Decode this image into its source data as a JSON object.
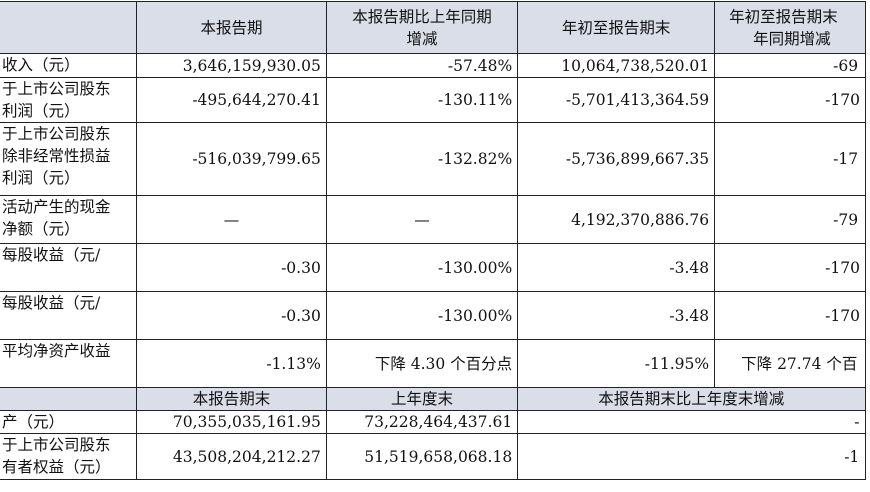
{
  "header": {
    "c1": "本报告期",
    "c2_line1": "本报告期比上年同期",
    "c2_line2": "增减",
    "c3": "年初至报告期末",
    "c4_line1": "年初至报告期末",
    "c4_line2": "年同期增减"
  },
  "rows": [
    {
      "label": [
        "收入（元）"
      ],
      "v1": "3,646,159,930.05",
      "v2": "-57.48%",
      "v3": "10,064,738,520.01",
      "v4": "-69"
    },
    {
      "label": [
        "于上市公司股东",
        "利润（元）"
      ],
      "v1": "-495,644,270.41",
      "v2": "-130.11%",
      "v3": "-5,701,413,364.59",
      "v4": "-170"
    },
    {
      "label": [
        "于上市公司股东",
        "除非经常性损益",
        "利润（元）"
      ],
      "v1": "-516,039,799.65",
      "v2": "-132.82%",
      "v3": "-5,736,899,667.35",
      "v4": "-17"
    },
    {
      "label": [
        "活动产生的现金",
        "净额（元）"
      ],
      "v1": "—",
      "v2": "—",
      "v3": "4,192,370,886.76",
      "v4": "-79"
    },
    {
      "label": [
        "每股收益（元/"
      ],
      "v1": "-0.30",
      "v2": "-130.00%",
      "v3": "-3.48",
      "v4": "-170"
    },
    {
      "label": [
        "每股收益（元/"
      ],
      "v1": "-0.30",
      "v2": "-130.00%",
      "v3": "-3.48",
      "v4": "-170"
    },
    {
      "label": [
        "平均净资产收益"
      ],
      "v1": "-1.13%",
      "v2": "下降 4.30 个百分点",
      "v3": "-11.95%",
      "v4": "下降 27.74 个百"
    }
  ],
  "header2": {
    "c1": "本报告期末",
    "c2": "上年度末",
    "c3": "本报告期末比上年度末增减"
  },
  "rows2": [
    {
      "label": [
        "产（元）"
      ],
      "v1": "70,355,035,161.95",
      "v2": "73,228,464,437.61",
      "v3": "-"
    },
    {
      "label": [
        "于上市公司股东",
        "有者权益（元）"
      ],
      "v1": "43,508,204,212.27",
      "v2": "51,519,658,068.18",
      "v3": "-1"
    }
  ]
}
